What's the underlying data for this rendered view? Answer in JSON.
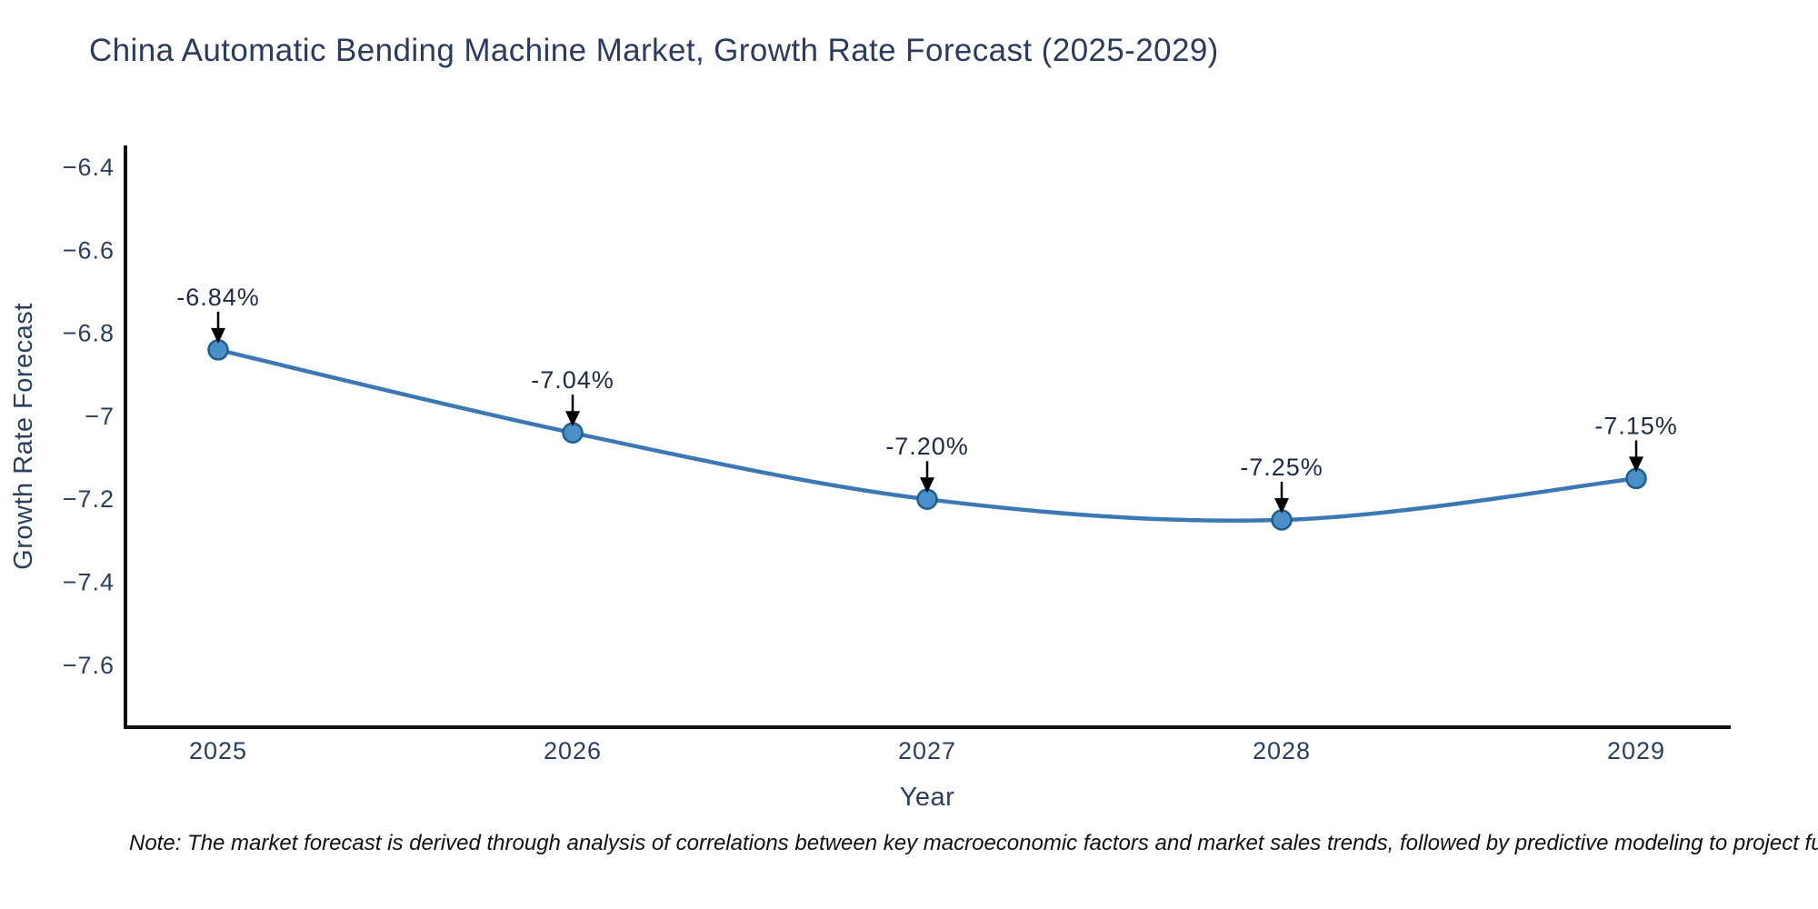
{
  "title": "China Automatic Bending Machine Market, Growth Rate Forecast (2025-2029)",
  "note": "Note: The market forecast is derived through analysis of correlations between key macroeconomic factors and market sales trends, followed by predictive modeling to project future sal",
  "chart_data": {
    "type": "line",
    "title": "China Automatic Bending Machine Market, Growth Rate Forecast (2025-2029)",
    "xlabel": "Year",
    "ylabel": "Growth Rate Forecast",
    "x": [
      2025,
      2026,
      2027,
      2028,
      2029
    ],
    "series": [
      {
        "name": "Growth Rate Forecast",
        "values": [
          -6.84,
          -7.04,
          -7.2,
          -7.25,
          -7.15
        ]
      }
    ],
    "point_labels": [
      "-6.84%",
      "-7.04%",
      "-7.20%",
      "-7.25%",
      "-7.15%"
    ],
    "xtick_labels": [
      "2025",
      "2026",
      "2027",
      "2028",
      "2029"
    ],
    "ytick_labels": [
      "−6.4",
      "−6.6",
      "−6.8",
      "−7",
      "−7.2",
      "−7.4",
      "−7.6"
    ],
    "ytick_values": [
      -6.4,
      -6.6,
      -6.8,
      -7.0,
      -7.2,
      -7.4,
      -7.6
    ],
    "ylim": [
      -7.75,
      -6.35
    ],
    "line_shape": "spline",
    "grid": false,
    "legend": "none",
    "colors": {
      "line": "#3b78b4",
      "marker_fill": "#4a8fc7",
      "marker_edge": "#1f5f90",
      "axis": "#101010",
      "tick_text": "#2a3f5f",
      "annotation_text": "#1e2b45",
      "arrow": "#000000"
    }
  }
}
